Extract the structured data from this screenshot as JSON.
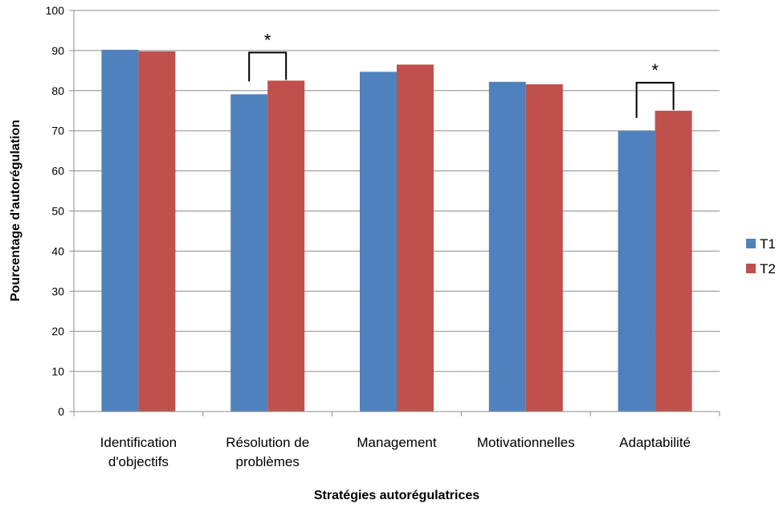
{
  "chart_data": {
    "type": "bar",
    "categories": [
      [
        "Identification",
        "d'objectifs"
      ],
      [
        "Résolution de",
        "problèmes"
      ],
      [
        "Management"
      ],
      [
        "Motivationnelles"
      ],
      [
        "Adaptabilité"
      ]
    ],
    "series": [
      {
        "name": "T1",
        "color": "#4F81BD",
        "values": [
          90.2,
          79.1,
          84.7,
          82.2,
          70.0
        ]
      },
      {
        "name": "T2",
        "color": "#C0504D",
        "values": [
          89.8,
          82.5,
          86.5,
          81.6,
          75.0
        ]
      }
    ],
    "xlabel": "Stratégies autorégulatrices",
    "ylabel": "Pourcentage d'autorégulation",
    "ylim": [
      0,
      100
    ],
    "yticks": [
      0,
      10,
      20,
      30,
      40,
      50,
      60,
      70,
      80,
      90,
      100
    ],
    "grid": true,
    "legend_position": "right",
    "significance": [
      {
        "category_index": 1,
        "label": "*"
      },
      {
        "category_index": 4,
        "label": "*"
      }
    ]
  }
}
